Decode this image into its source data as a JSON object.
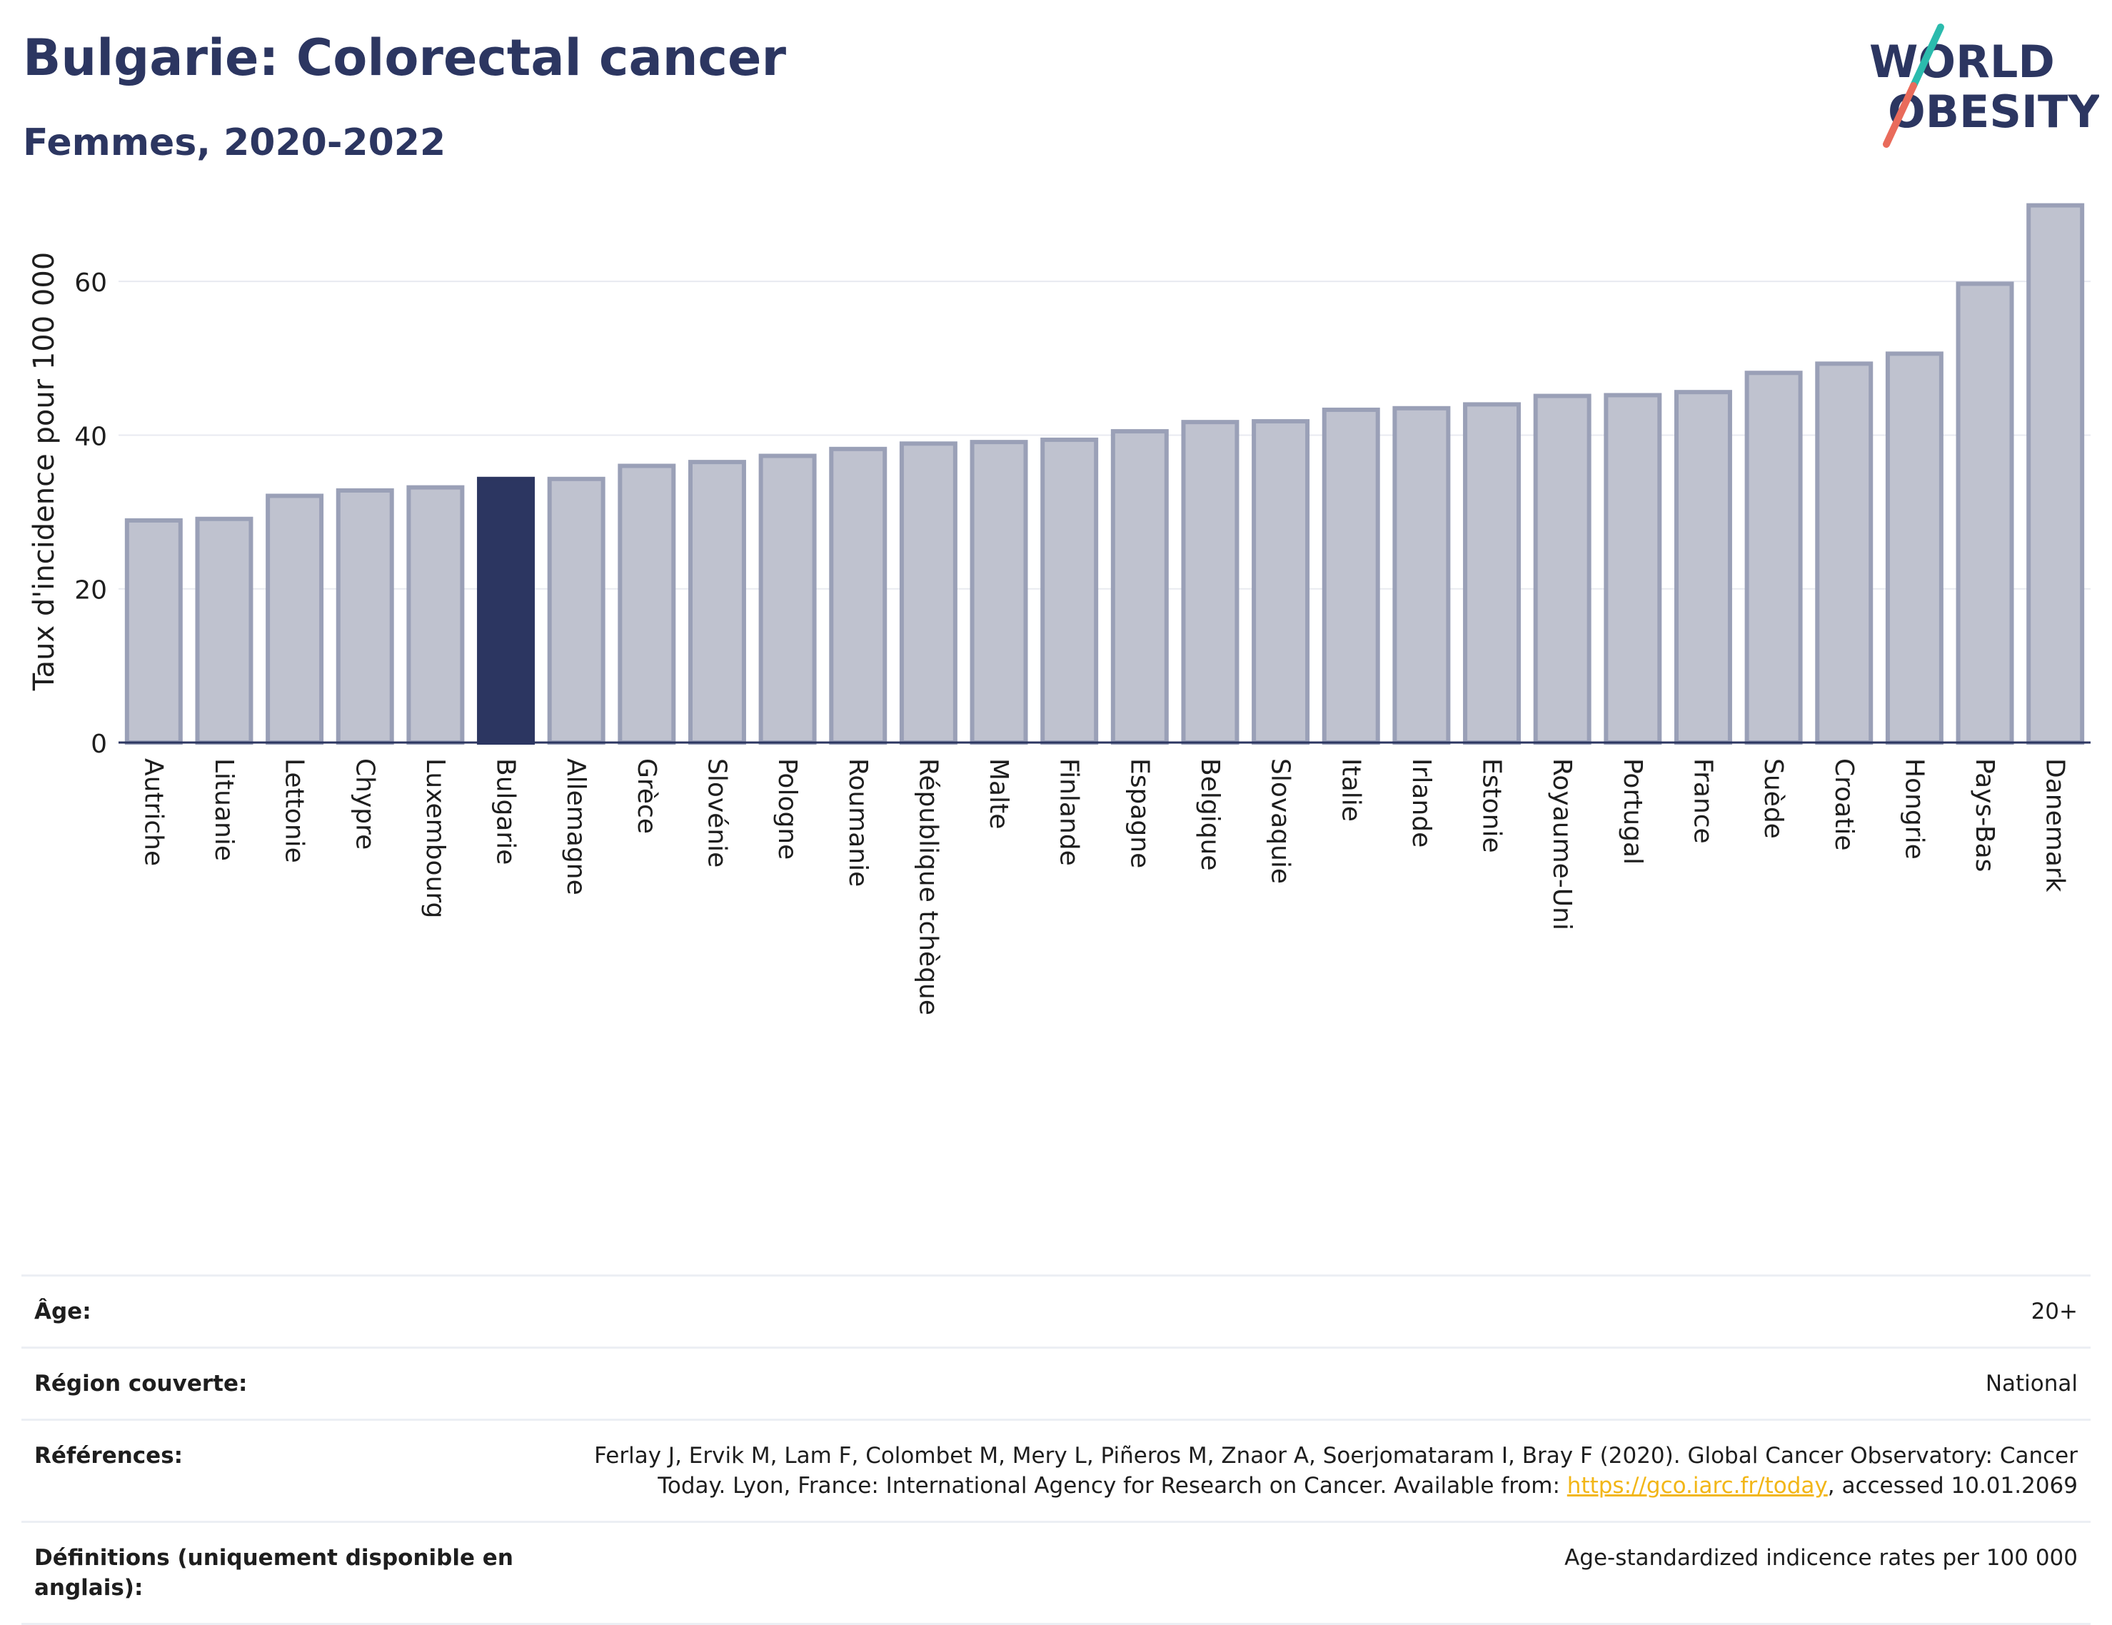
{
  "header": {
    "title": "Bulgarie: Colorectal cancer",
    "subtitle": "Femmes, 2020-2022"
  },
  "logo": {
    "line1": "WORLD",
    "line2": "OBESITY",
    "colors": {
      "text": "#2c3661",
      "slash_top": "#2bbbad",
      "slash_bottom": "#e96b5b"
    }
  },
  "chart_data": {
    "type": "bar",
    "ylabel": "Taux d'incidence pour 100 000",
    "ylim": [
      0,
      72
    ],
    "yticks": [
      0,
      20,
      40,
      60
    ],
    "grid": true,
    "highlight": "Bulgarie",
    "colors": {
      "bar": "#bfc2cf",
      "bar_edge": "#9aa0b7",
      "highlight": "#2c3661"
    },
    "categories": [
      "Autriche",
      "Lituanie",
      "Lettonie",
      "Chypre",
      "Luxembourg",
      "Bulgarie",
      "Allemagne",
      "Grèce",
      "Slovénie",
      "Pologne",
      "Roumanie",
      "République tchèque",
      "Malte",
      "Finlande",
      "Espagne",
      "Belgique",
      "Slovaquie",
      "Italie",
      "Irlande",
      "Estonie",
      "Royaume-Uni",
      "Portugal",
      "France",
      "Suède",
      "Croatie",
      "Hongrie",
      "Pays-Bas",
      "Danemark"
    ],
    "values": [
      28.9,
      29.1,
      32.1,
      32.8,
      33.2,
      34.3,
      34.3,
      36.0,
      36.5,
      37.3,
      38.2,
      38.9,
      39.1,
      39.4,
      40.5,
      41.7,
      41.8,
      43.3,
      43.5,
      44.0,
      45.1,
      45.2,
      45.6,
      48.1,
      49.3,
      50.6,
      59.7,
      69.9
    ]
  },
  "meta": {
    "age": {
      "label": "Âge:",
      "value": "20+"
    },
    "region": {
      "label": "Région couverte:",
      "value": "National"
    },
    "references": {
      "label": "Références:",
      "text_before": "Ferlay J, Ervik M, Lam F, Colombet M, Mery L, Piñeros M, Znaor A, Soerjomataram I, Bray F (2020). Global Cancer Observatory: Cancer Today. Lyon, France: International Agency for Research on Cancer. Available from: ",
      "link": "https://gco.iarc.fr/today",
      "text_after": ", accessed 10.01.2069"
    },
    "definitions": {
      "label": "Définitions (uniquement disponible en anglais):",
      "value": "Age-standardized indicence rates per 100 000"
    }
  }
}
